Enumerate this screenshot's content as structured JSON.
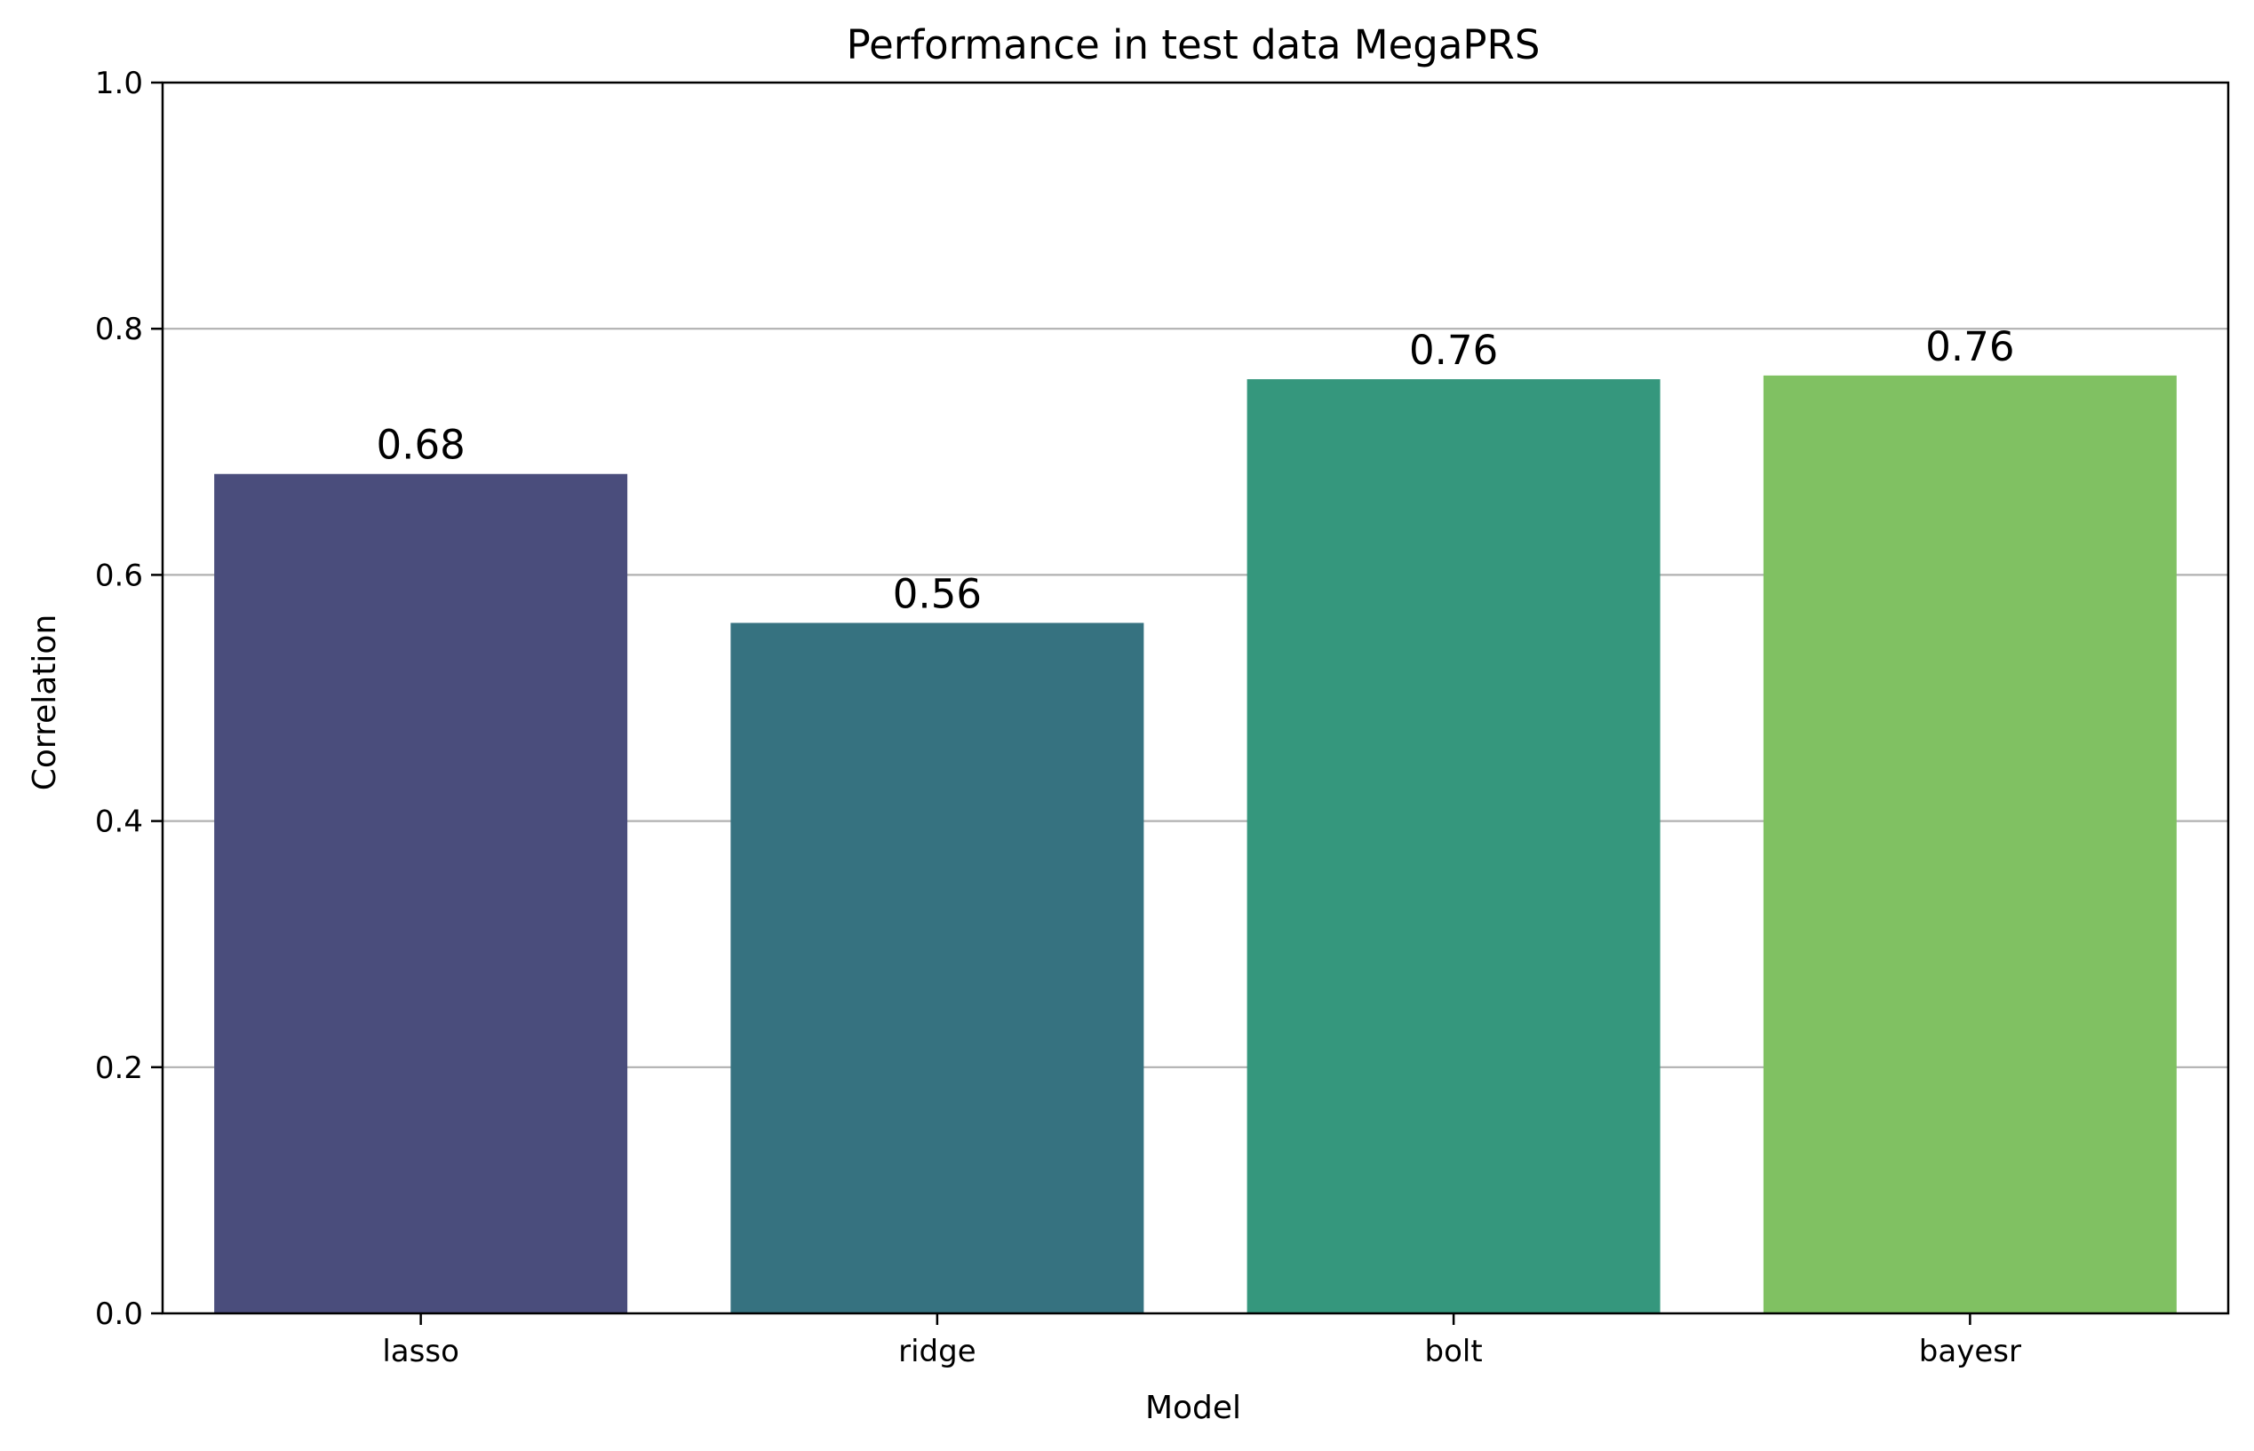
{
  "chart_data": {
    "type": "bar",
    "title": "Performance in test data MegaPRS",
    "xlabel": "Model",
    "ylabel": "Correlation",
    "categories": [
      "lasso",
      "ridge",
      "bolt",
      "bayesr"
    ],
    "values": [
      0.682,
      0.561,
      0.759,
      0.762
    ],
    "data_labels": [
      "0.68",
      "0.56",
      "0.76",
      "0.76"
    ],
    "colors": [
      "#4a4d7c",
      "#367280",
      "#35977d",
      "#80c162"
    ],
    "ylim": [
      0,
      1.0
    ],
    "yticks": [
      0.0,
      0.2,
      0.4,
      0.6,
      0.8,
      1.0
    ],
    "ytick_labels": [
      "0.0",
      "0.2",
      "0.4",
      "0.6",
      "0.8",
      "1.0"
    ],
    "grid": "y-axis horizontal lines",
    "grid_color": "#b0b0b0"
  }
}
